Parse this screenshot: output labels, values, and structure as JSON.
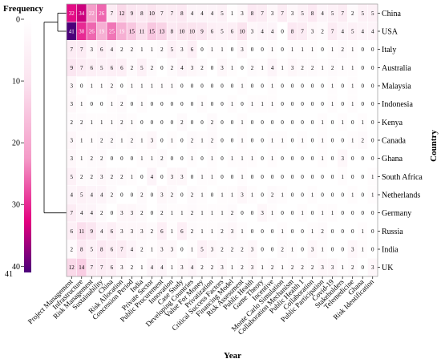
{
  "chart_data": {
    "type": "heatmap",
    "legend_title": "Frequency",
    "xlabel": "Year",
    "ylabel": "Country",
    "colorbar": {
      "ticks": [
        0,
        10,
        20,
        30,
        40
      ],
      "max_label": "41",
      "colors": [
        "#ffffff",
        "#fbe3ef",
        "#f49ac7",
        "#e2007f",
        "#4b007a"
      ]
    },
    "rows": [
      "China",
      "USA",
      "Italy",
      "Australia",
      "Malaysia",
      "Indonesia",
      "Kenya",
      "Canada",
      "Ghana",
      "South Africa",
      "Netherlands",
      "Germany",
      "Russia",
      "India",
      "UK"
    ],
    "columns": [
      "Project Management",
      "Infrastructure",
      "Risk Management",
      "Sustainability",
      "China",
      "Risk Allocation",
      "Concession Period",
      "India",
      "Private Sector",
      "Public Procurement",
      "Innovation",
      "Case Study",
      "Developing Countries",
      "Value For Money",
      "Privatization",
      "Critical Success Factors",
      "Financing Model",
      "Risk Assessment",
      "Public Health",
      "Game Theory",
      "Incentive",
      "Monte Carlo Simulation",
      "Collaboration Mechanism",
      "Public Health 1",
      "Collaboration",
      "Public Participation",
      "Covid-19",
      "Stakeholders",
      "Telemedicine",
      "Ghana",
      "Risk Identification"
    ],
    "values": [
      [
        32,
        34,
        22,
        26,
        7,
        12,
        9,
        8,
        10,
        7,
        7,
        8,
        4,
        4,
        4,
        5,
        1,
        3,
        8,
        7,
        3,
        7,
        3,
        5,
        8,
        4,
        5,
        7,
        2,
        5,
        5
      ],
      [
        41,
        30,
        26,
        19,
        25,
        19,
        15,
        11,
        15,
        13,
        8,
        10,
        10,
        9,
        6,
        5,
        6,
        10,
        3,
        4,
        4,
        0,
        8,
        7,
        3,
        2,
        7,
        4,
        5,
        4,
        4
      ],
      [
        7,
        7,
        3,
        6,
        4,
        2,
        2,
        1,
        1,
        2,
        5,
        3,
        6,
        0,
        1,
        1,
        0,
        3,
        0,
        0,
        1,
        0,
        1,
        1,
        1,
        0,
        1,
        2,
        1,
        0,
        0
      ],
      [
        9,
        7,
        6,
        5,
        6,
        6,
        2,
        5,
        2,
        0,
        2,
        4,
        3,
        2,
        0,
        3,
        1,
        0,
        2,
        1,
        4,
        1,
        3,
        2,
        2,
        1,
        2,
        1,
        1,
        0,
        0
      ],
      [
        3,
        0,
        1,
        1,
        2,
        0,
        1,
        1,
        1,
        1,
        1,
        0,
        0,
        0,
        0,
        0,
        0,
        1,
        0,
        0,
        1,
        0,
        0,
        0,
        0,
        0,
        1,
        0,
        1,
        0,
        0
      ],
      [
        3,
        1,
        0,
        0,
        1,
        2,
        0,
        1,
        0,
        0,
        0,
        0,
        0,
        1,
        0,
        0,
        1,
        0,
        1,
        1,
        1,
        0,
        0,
        0,
        0,
        0,
        1,
        0,
        1,
        0,
        0
      ],
      [
        2,
        2,
        1,
        1,
        1,
        2,
        1,
        0,
        0,
        0,
        0,
        2,
        0,
        0,
        2,
        0,
        0,
        1,
        0,
        0,
        0,
        0,
        0,
        0,
        0,
        1,
        0,
        1,
        0,
        1,
        0
      ],
      [
        3,
        1,
        1,
        2,
        2,
        1,
        2,
        1,
        3,
        0,
        1,
        0,
        2,
        1,
        2,
        0,
        0,
        1,
        0,
        0,
        1,
        1,
        0,
        1,
        0,
        1,
        0,
        0,
        1,
        2,
        0
      ],
      [
        3,
        1,
        2,
        2,
        0,
        0,
        0,
        1,
        1,
        2,
        0,
        0,
        1,
        0,
        1,
        0,
        1,
        1,
        1,
        0,
        1,
        0,
        0,
        0,
        0,
        1,
        0,
        3,
        0,
        0,
        0
      ],
      [
        5,
        2,
        2,
        3,
        2,
        2,
        1,
        0,
        4,
        0,
        3,
        3,
        0,
        1,
        1,
        0,
        0,
        1,
        0,
        0,
        0,
        0,
        0,
        0,
        0,
        0,
        0,
        1,
        0,
        0,
        1
      ],
      [
        4,
        5,
        4,
        4,
        2,
        0,
        0,
        2,
        0,
        3,
        2,
        0,
        2,
        1,
        0,
        1,
        1,
        3,
        1,
        0,
        2,
        1,
        0,
        0,
        1,
        0,
        0,
        0,
        1,
        0,
        1
      ],
      [
        7,
        4,
        4,
        2,
        0,
        3,
        3,
        2,
        0,
        2,
        1,
        1,
        2,
        1,
        1,
        1,
        2,
        0,
        0,
        3,
        1,
        0,
        0,
        1,
        0,
        1,
        1,
        0,
        0,
        0,
        0
      ],
      [
        6,
        11,
        9,
        4,
        6,
        3,
        3,
        3,
        2,
        6,
        1,
        6,
        2,
        1,
        1,
        2,
        3,
        1,
        0,
        0,
        0,
        1,
        0,
        0,
        1,
        2,
        0,
        0,
        0,
        1,
        0
      ],
      [
        2,
        8,
        5,
        8,
        6,
        7,
        4,
        2,
        1,
        3,
        3,
        0,
        1,
        5,
        3,
        2,
        2,
        2,
        3,
        0,
        0,
        2,
        1,
        0,
        3,
        1,
        0,
        0,
        3,
        1,
        0
      ],
      [
        12,
        14,
        7,
        7,
        6,
        3,
        2,
        1,
        4,
        4,
        1,
        3,
        4,
        2,
        2,
        3,
        1,
        2,
        3,
        1,
        2,
        1,
        2,
        2,
        2,
        3,
        3,
        1,
        2,
        0,
        3
      ]
    ]
  }
}
